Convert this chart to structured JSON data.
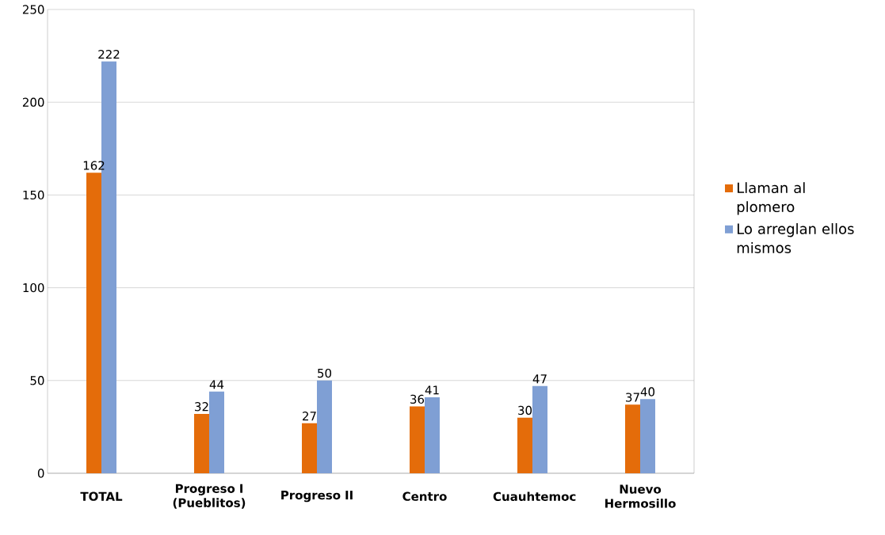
{
  "chart_data": {
    "type": "bar",
    "categories": [
      "TOTAL",
      "Progreso I (Pueblitos)",
      "Progreso II",
      "Centro",
      "Cuauhtemoc",
      "Nuevo Hermosillo"
    ],
    "series": [
      {
        "name": "Llaman al plomero",
        "color": "#e46c0a",
        "values": [
          162,
          32,
          27,
          36,
          30,
          37
        ]
      },
      {
        "name": "Lo arreglan ellos mismos",
        "color": "#7f9fd4",
        "values": [
          222,
          44,
          50,
          41,
          47,
          40
        ]
      }
    ],
    "ylim": [
      0,
      250
    ],
    "yticks": [
      0,
      50,
      100,
      150,
      200,
      250
    ],
    "grid": "y",
    "legend": "right",
    "data_labels": true
  }
}
